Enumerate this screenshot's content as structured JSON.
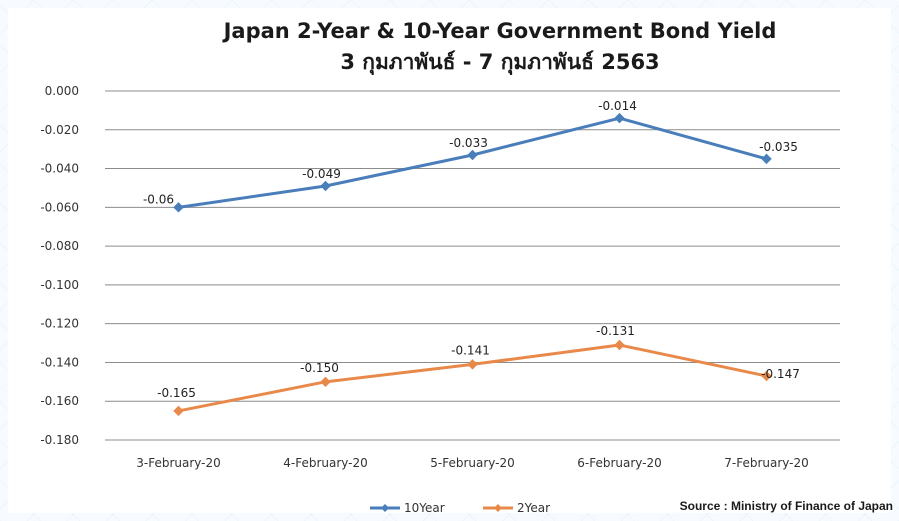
{
  "chart_data": {
    "type": "line",
    "title": "Japan 2-Year & 10-Year Government Bond Yield",
    "subtitle": "3 กุมภาพันธ์ - 7 กุมภาพันธ์ 2563",
    "xlabel": "",
    "ylabel": "",
    "categories": [
      "3-February-20",
      "4-February-20",
      "5-February-20",
      "6-February-20",
      "7-February-20"
    ],
    "ylim": [
      -0.18,
      0.0
    ],
    "yticks": [
      "0.000",
      "-0.020",
      "-0.040",
      "-0.060",
      "-0.080",
      "-0.100",
      "-0.120",
      "-0.140",
      "-0.160",
      "-0.180"
    ],
    "grid": true,
    "legend_position": "bottom",
    "series": [
      {
        "name": "10Year",
        "color": "#4a7ebb",
        "marker": "diamond",
        "values": [
          -0.06,
          -0.049,
          -0.033,
          -0.014,
          -0.035
        ],
        "labels": [
          "-0.06",
          "-0.049",
          "-0.033",
          "-0.014",
          "-0.035"
        ]
      },
      {
        "name": "2Year",
        "color": "#e8894a",
        "marker": "diamond",
        "values": [
          -0.165,
          -0.15,
          -0.141,
          -0.131,
          -0.147
        ],
        "labels": [
          "-0.165",
          "-0.150",
          "-0.141",
          "-0.131",
          "-0.147"
        ]
      }
    ]
  },
  "source": "Source : Ministry of Finance of Japan"
}
